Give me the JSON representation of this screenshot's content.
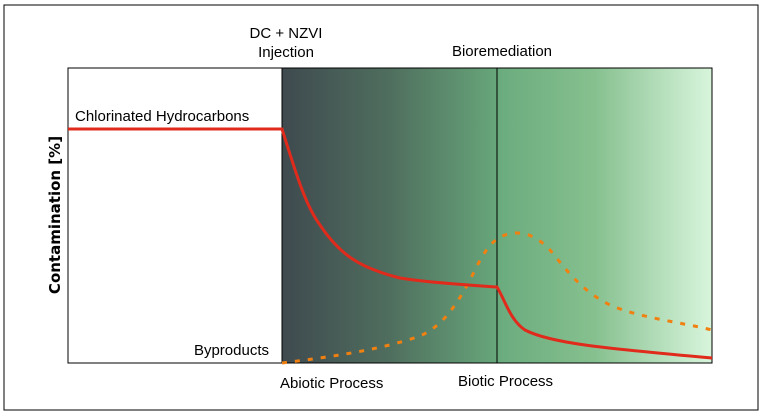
{
  "labels": {
    "injection_line1": "DC + NZVI",
    "injection_line2": "Injection",
    "bioremediation": "Bioremediation",
    "chlorinated": "Chlorinated Hydrocarbons",
    "byproducts": "Byproducts",
    "abiotic": "Abiotic Process",
    "biotic": "Biotic Process",
    "y_axis": "Contamination [%]"
  },
  "colors": {
    "chlorinated_line": "#e02a1c",
    "byproducts_line": "#f08010",
    "gradient_start": "#3f4a4f",
    "gradient_mid": "#67a67a",
    "gradient_end": "#d8f5dc"
  }
}
